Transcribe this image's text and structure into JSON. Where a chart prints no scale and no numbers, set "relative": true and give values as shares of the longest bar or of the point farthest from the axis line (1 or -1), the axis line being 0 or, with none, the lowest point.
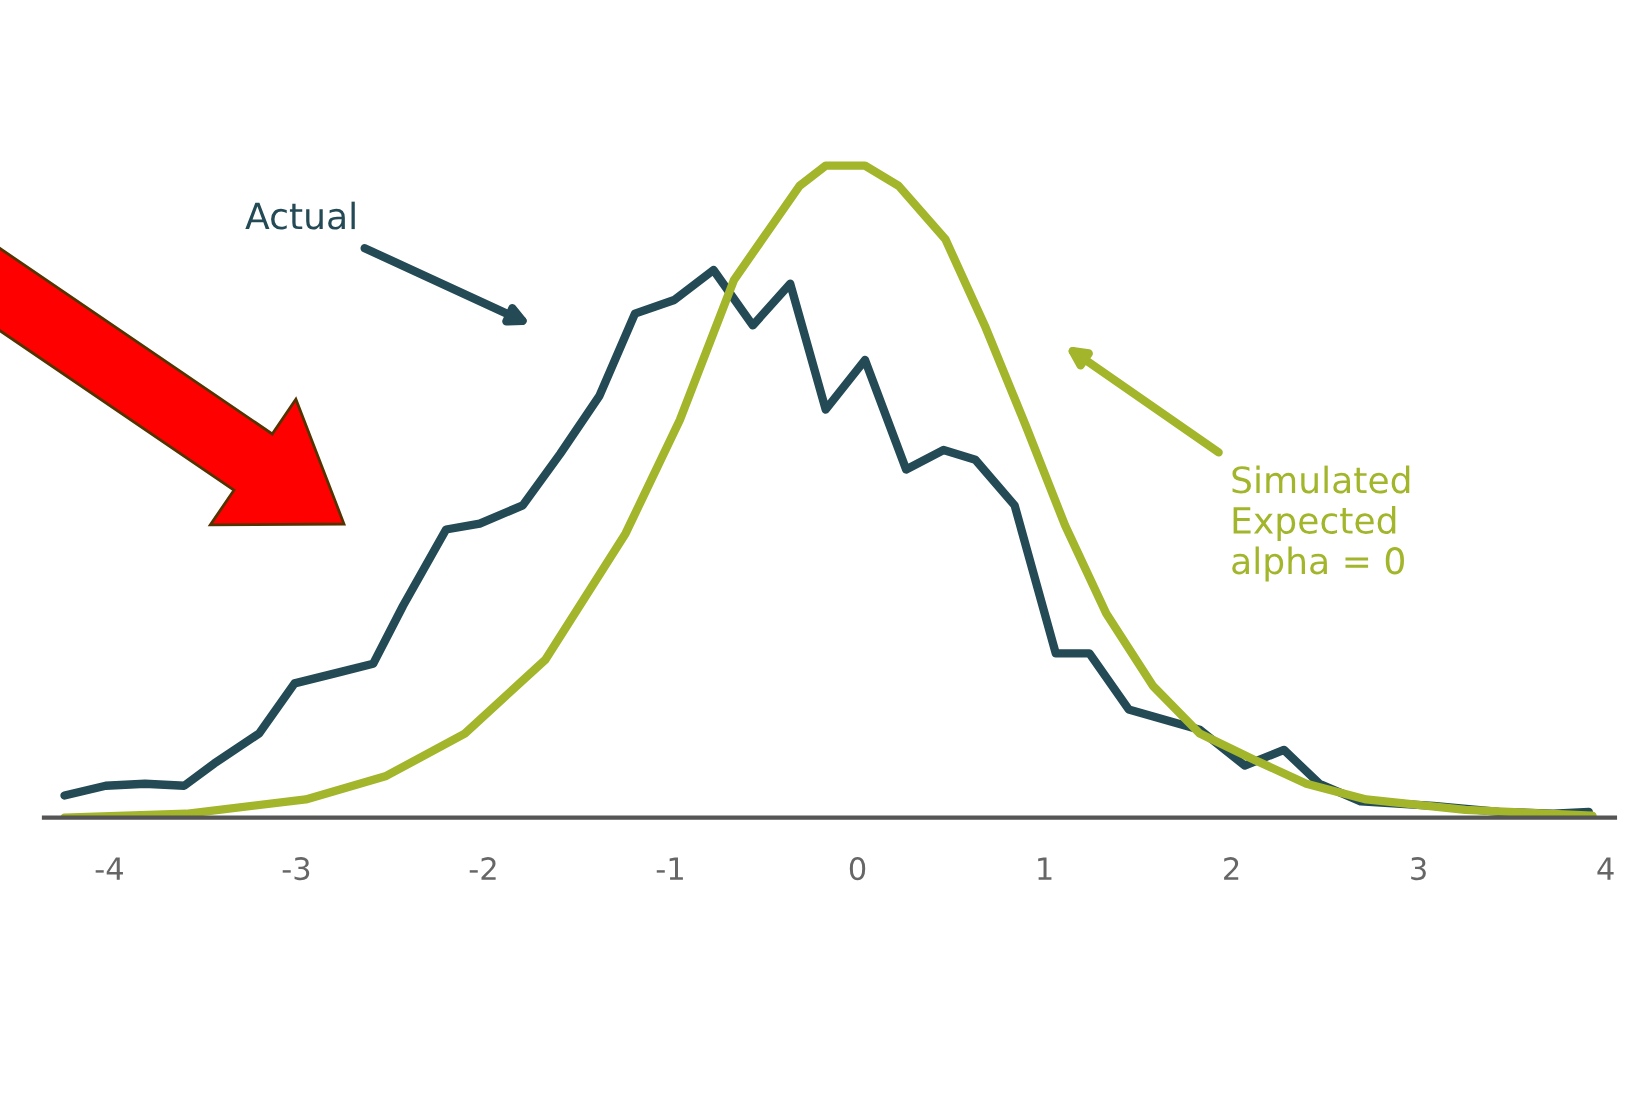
{
  "chart_data": {
    "type": "line",
    "relative": true,
    "xlim": [
      -4.35,
      4.05
    ],
    "xticks": [
      -4,
      -3,
      -2,
      -1,
      0,
      1,
      2,
      3,
      4
    ],
    "grid": false,
    "legend": false,
    "marker": "none",
    "line_style": "solid",
    "series": [
      {
        "name": "Actual",
        "color": "#234a55",
        "x": [
          -4.24,
          -4.02,
          -3.81,
          -3.6,
          -3.44,
          -3.2,
          -3.01,
          -2.8,
          -2.59,
          -2.43,
          -2.2,
          -2.02,
          -1.79,
          -1.59,
          -1.38,
          -1.19,
          -0.98,
          -0.77,
          -0.56,
          -0.36,
          -0.17,
          0.04,
          0.26,
          0.46,
          0.63,
          0.84,
          1.06,
          1.24,
          1.45,
          1.83,
          2.07,
          2.28,
          2.47,
          2.69,
          3.08,
          3.43,
          3.72,
          3.91
        ],
        "values": [
          0.034,
          0.049,
          0.052,
          0.049,
          0.083,
          0.129,
          0.206,
          0.221,
          0.236,
          0.325,
          0.442,
          0.451,
          0.479,
          0.558,
          0.647,
          0.773,
          0.794,
          0.84,
          0.755,
          0.819,
          0.626,
          0.702,
          0.534,
          0.564,
          0.549,
          0.479,
          0.252,
          0.252,
          0.166,
          0.135,
          0.08,
          0.104,
          0.052,
          0.025,
          0.018,
          0.009,
          0.006,
          0.009
        ]
      },
      {
        "name": "Simulated\nExpected\nalpha = 0",
        "color": "#a3b52a",
        "x": [
          -4.24,
          -3.59,
          -2.95,
          -2.52,
          -2.1,
          -1.67,
          -1.24,
          -0.95,
          -0.66,
          -0.31,
          -0.17,
          0.04,
          0.22,
          0.47,
          0.68,
          0.9,
          1.11,
          1.33,
          1.58,
          1.83,
          2.12,
          2.4,
          2.72,
          3.25,
          3.93
        ],
        "values": [
          0,
          0.006,
          0.028,
          0.064,
          0.129,
          0.242,
          0.436,
          0.61,
          0.825,
          0.969,
          1,
          1,
          0.969,
          0.887,
          0.755,
          0.601,
          0.448,
          0.313,
          0.202,
          0.129,
          0.089,
          0.052,
          0.028,
          0.012,
          0.003
        ]
      }
    ]
  }
}
